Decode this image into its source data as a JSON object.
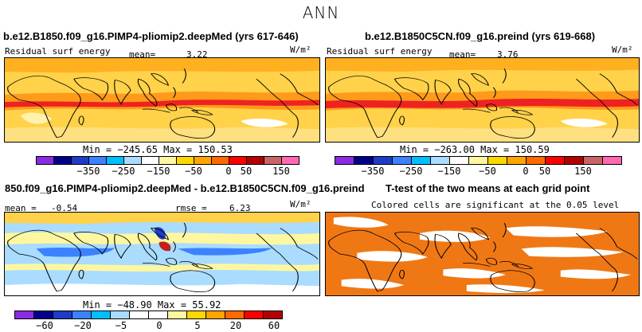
{
  "figure": {
    "title": "ANN"
  },
  "chart_data": [
    {
      "type": "heatmap",
      "title": "b.e12.B1850.f09_g16.PIMP4-pliomip2.deepMed (yrs 617-646)",
      "variable": "Residual surf energy",
      "mean_label": "mean=",
      "mean": "3.22",
      "units": "W/m²",
      "min_max_text": "Min = −245.65  Max = 150.53",
      "min": -245.65,
      "max": 150.53,
      "colorbar": {
        "colors": [
          "#8a2be2",
          "#00008b",
          "#1e3cc8",
          "#3c82ff",
          "#00bfff",
          "#aadcff",
          "#ffffff",
          "#fff7a0",
          "#ffd700",
          "#ffa500",
          "#ff6a00",
          "#ff0000",
          "#b40000",
          "#c86464",
          "#ff69b4"
        ],
        "ticks": [
          "−350",
          "−250",
          "−150",
          "−50",
          "0",
          "50",
          "150"
        ]
      }
    },
    {
      "type": "heatmap",
      "title": "b.e12.B1850C5CN.f09_g16.preind (yrs 619-668)",
      "variable": "Residual surf energy",
      "mean_label": "mean=",
      "mean": "3.76",
      "units": "W/m²",
      "min_max_text": "Min = −263.00  Max = 150.59",
      "min": -263.0,
      "max": 150.59,
      "colorbar": {
        "ticks": [
          "−350",
          "−250",
          "−150",
          "−50",
          "0",
          "50",
          "150"
        ]
      }
    },
    {
      "type": "heatmap",
      "title": "850.f09_g16.PIMP4-pliomip2.deepMed - b.e12.B1850C5CN.f09_g16.preind",
      "mean_label": "mean =",
      "mean": "-0.54",
      "rmse_label": "rmse =",
      "rmse": "6.23",
      "units": "W/m²",
      "min_max_text": "Min = −48.90  Max = 55.92",
      "min": -48.9,
      "max": 55.92,
      "colorbar": {
        "colors": [
          "#8a2be2",
          "#00008b",
          "#1e3cc8",
          "#3c82ff",
          "#00bfff",
          "#aadcff",
          "#ffffff",
          "#ffffff",
          "#fff7a0",
          "#ffd700",
          "#ffa500",
          "#ff6a00",
          "#ff0000",
          "#b40000",
          "#c86464"
        ],
        "ticks": [
          "−60",
          "−20",
          "−5",
          "0",
          "5",
          "20",
          "60"
        ]
      }
    },
    {
      "type": "heatmap",
      "title": "T-test of the two means at each grid point",
      "subtitle": "Colored cells are significant at the 0.05 level",
      "significant_color": "#f07814"
    }
  ]
}
